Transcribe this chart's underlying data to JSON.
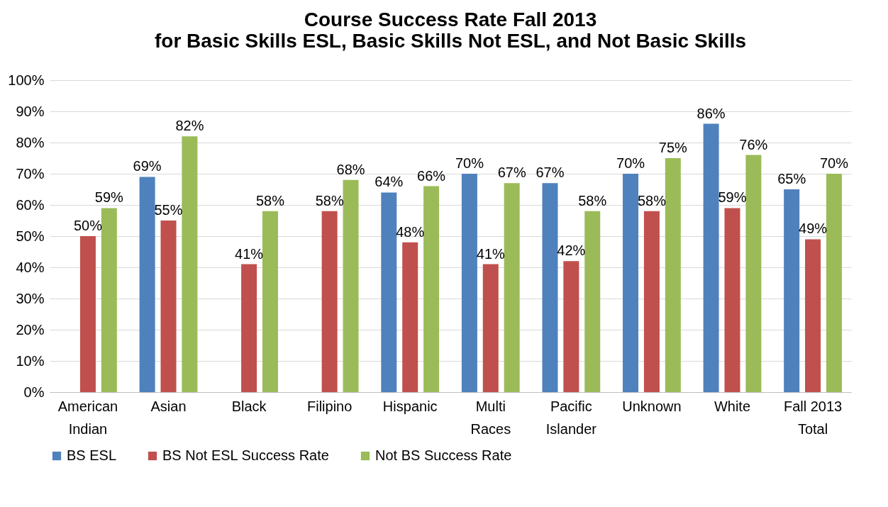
{
  "chart_data": {
    "type": "bar",
    "title": "Course Success Rate Fall 2013\nfor Basic Skills ESL, Basic Skills Not ESL, and Not Basic Skills",
    "categories": [
      "American Indian",
      "Asian",
      "Black",
      "Filipino",
      "Hispanic",
      "Multi Races",
      "Pacific Islander",
      "Unknown",
      "White",
      "Fall 2013 Total"
    ],
    "series": [
      {
        "name": "BS ESL",
        "color": "#4f81bd",
        "values": [
          null,
          69,
          null,
          null,
          64,
          70,
          67,
          70,
          86,
          65
        ],
        "value_labels": [
          null,
          "69%",
          null,
          null,
          "64%",
          "70%",
          "67%",
          "70%",
          "86%",
          "65%"
        ]
      },
      {
        "name": "BS Not ESL Success Rate",
        "color": "#c0504d",
        "values": [
          50,
          55,
          41,
          58,
          48,
          41,
          42,
          58,
          59,
          49
        ],
        "value_labels": [
          "50%",
          "55%",
          "41%",
          "58%",
          "48%",
          "41%",
          "42%",
          "58%",
          "59%",
          "49%"
        ]
      },
      {
        "name": "Not BS Success Rate",
        "color": "#9bbb59",
        "values": [
          59,
          82,
          58,
          68,
          66,
          67,
          58,
          75,
          76,
          70
        ],
        "value_labels": [
          "59%",
          "82%",
          "58%",
          "68%",
          "66%",
          "67%",
          "58%",
          "75%",
          "76%",
          "70%"
        ]
      }
    ],
    "ylim": [
      0,
      100
    ],
    "yticks": [
      {
        "value": 0,
        "label": "0%"
      },
      {
        "value": 10,
        "label": "10%"
      },
      {
        "value": 20,
        "label": "20%"
      },
      {
        "value": 30,
        "label": "30%"
      },
      {
        "value": 40,
        "label": "40%"
      },
      {
        "value": 50,
        "label": "50%"
      },
      {
        "value": 60,
        "label": "60%"
      },
      {
        "value": 70,
        "label": "70%"
      },
      {
        "value": 80,
        "label": "80%"
      },
      {
        "value": 90,
        "label": "90%"
      },
      {
        "value": 100,
        "label": "100%"
      }
    ],
    "grid": "y",
    "legend": "bottom"
  }
}
